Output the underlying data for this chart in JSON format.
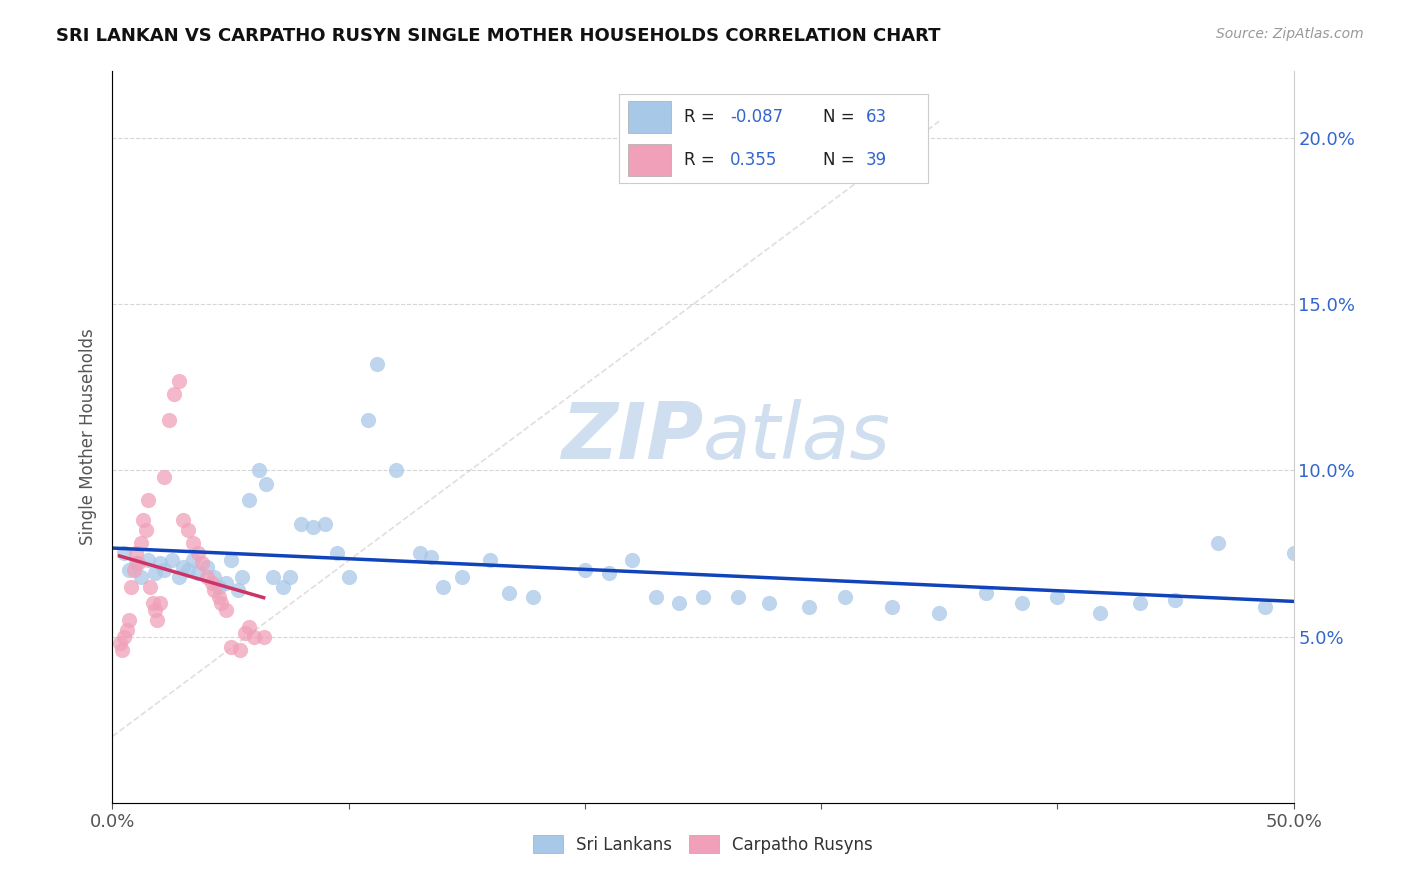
{
  "title": "SRI LANKAN VS CARPATHO RUSYN SINGLE MOTHER HOUSEHOLDS CORRELATION CHART",
  "source_text": "Source: ZipAtlas.com",
  "ylabel": "Single Mother Households",
  "xlim": [
    0.0,
    0.5
  ],
  "ylim": [
    0.0,
    0.22
  ],
  "xticks": [
    0.0,
    0.1,
    0.2,
    0.3,
    0.4,
    0.5
  ],
  "xtick_labels": [
    "0.0%",
    "",
    "",
    "",
    "",
    "50.0%"
  ],
  "yticks": [
    0.05,
    0.1,
    0.15,
    0.2
  ],
  "ytick_labels_right": [
    "5.0%",
    "10.0%",
    "15.0%",
    "20.0%"
  ],
  "sri_lankan_R": -0.087,
  "sri_lankan_N": 63,
  "carpatho_R": 0.355,
  "carpatho_N": 39,
  "sri_lankan_color": "#a8c8e8",
  "carpatho_color": "#f0a0b8",
  "trend_sri_color": "#1144bb",
  "trend_carpatho_color": "#cc3366",
  "dashed_color": "#ddaaaa",
  "watermark_color": "#d0dff0",
  "legend_text_color": "#3366cc",
  "sri_lankans_x": [
    0.005,
    0.007,
    0.01,
    0.012,
    0.015,
    0.018,
    0.02,
    0.022,
    0.025,
    0.028,
    0.03,
    0.032,
    0.034,
    0.036,
    0.04,
    0.043,
    0.045,
    0.048,
    0.05,
    0.053,
    0.055,
    0.058,
    0.062,
    0.065,
    0.068,
    0.072,
    0.075,
    0.08,
    0.085,
    0.09,
    0.095,
    0.1,
    0.108,
    0.112,
    0.12,
    0.13,
    0.135,
    0.14,
    0.148,
    0.16,
    0.168,
    0.178,
    0.2,
    0.21,
    0.22,
    0.23,
    0.24,
    0.25,
    0.265,
    0.278,
    0.295,
    0.31,
    0.33,
    0.35,
    0.37,
    0.385,
    0.4,
    0.418,
    0.435,
    0.45,
    0.468,
    0.488,
    0.5
  ],
  "sri_lankans_y": [
    0.075,
    0.07,
    0.072,
    0.068,
    0.073,
    0.069,
    0.072,
    0.07,
    0.073,
    0.068,
    0.071,
    0.07,
    0.073,
    0.069,
    0.071,
    0.068,
    0.065,
    0.066,
    0.073,
    0.064,
    0.068,
    0.091,
    0.1,
    0.096,
    0.068,
    0.065,
    0.068,
    0.084,
    0.083,
    0.084,
    0.075,
    0.068,
    0.115,
    0.132,
    0.1,
    0.075,
    0.074,
    0.065,
    0.068,
    0.073,
    0.063,
    0.062,
    0.07,
    0.069,
    0.073,
    0.062,
    0.06,
    0.062,
    0.062,
    0.06,
    0.059,
    0.062,
    0.059,
    0.057,
    0.063,
    0.06,
    0.062,
    0.057,
    0.06,
    0.061,
    0.078,
    0.059,
    0.075
  ],
  "carpatho_x": [
    0.003,
    0.004,
    0.005,
    0.006,
    0.007,
    0.008,
    0.009,
    0.01,
    0.011,
    0.012,
    0.013,
    0.014,
    0.015,
    0.016,
    0.017,
    0.018,
    0.019,
    0.02,
    0.022,
    0.024,
    0.026,
    0.028,
    0.03,
    0.032,
    0.034,
    0.036,
    0.038,
    0.04,
    0.042,
    0.043,
    0.045,
    0.046,
    0.048,
    0.05,
    0.054,
    0.056,
    0.058,
    0.06,
    0.064
  ],
  "carpatho_y": [
    0.048,
    0.046,
    0.05,
    0.052,
    0.055,
    0.065,
    0.07,
    0.075,
    0.072,
    0.078,
    0.085,
    0.082,
    0.091,
    0.065,
    0.06,
    0.058,
    0.055,
    0.06,
    0.098,
    0.115,
    0.123,
    0.127,
    0.085,
    0.082,
    0.078,
    0.075,
    0.072,
    0.068,
    0.066,
    0.064,
    0.062,
    0.06,
    0.058,
    0.047,
    0.046,
    0.051,
    0.053,
    0.05,
    0.05
  ]
}
